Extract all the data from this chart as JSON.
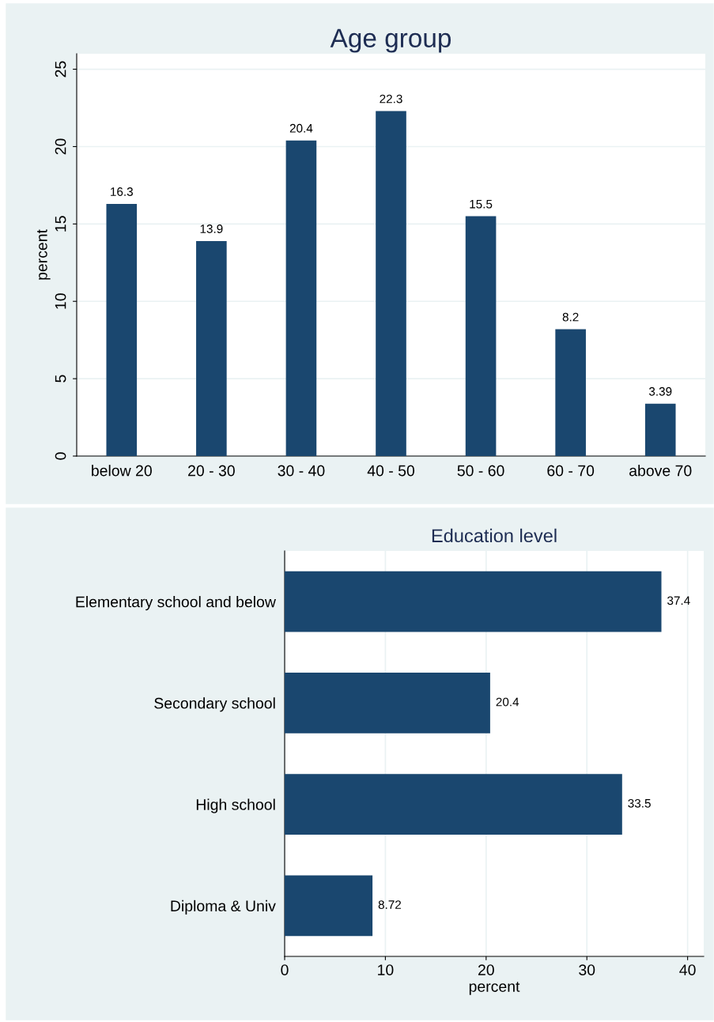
{
  "chart_data": [
    {
      "type": "bar",
      "title": "Age group",
      "ylabel": "percent",
      "categories": [
        "below 20",
        "20 - 30",
        "30 - 40",
        "40 - 50",
        "50 - 60",
        "60 - 70",
        "above 70"
      ],
      "values": [
        16.3,
        13.9,
        20.4,
        22.3,
        15.5,
        8.2,
        3.39
      ],
      "color": "#1a476f",
      "ylim": [
        0,
        26
      ],
      "yticks": [
        0,
        5,
        10,
        15,
        20,
        25
      ],
      "grid": "y",
      "data_labels": true
    },
    {
      "type": "bar",
      "orientation": "horizontal",
      "title": "Education level",
      "xlabel": "percent",
      "categories": [
        "Elementary school and below",
        "Secondary school",
        "High school",
        "Diploma & Univ"
      ],
      "values": [
        37.4,
        20.4,
        33.5,
        8.72
      ],
      "color": "#1a476f",
      "xlim": [
        0,
        41.6
      ],
      "xticks": [
        0,
        10,
        20,
        30,
        40
      ],
      "grid": "x",
      "data_labels": true
    }
  ]
}
